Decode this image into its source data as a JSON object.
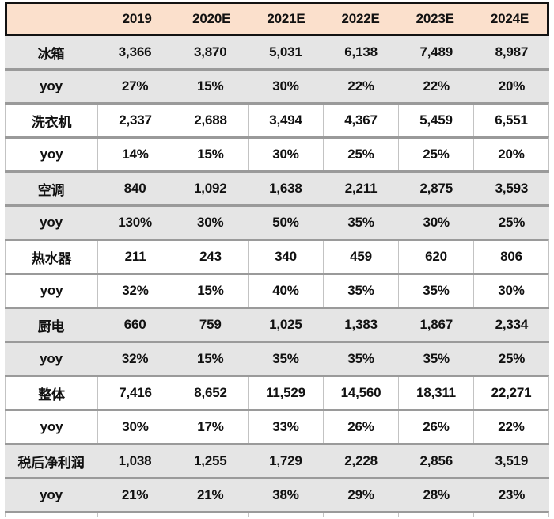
{
  "colors": {
    "header_bg": "#fbe0cc",
    "alt_row_bg": "#e5e5e5",
    "header_border": "#121212",
    "row_separator": "#9a9a9a",
    "column_grid_line": "#c3c3c3",
    "text": "#111111"
  },
  "chart_data": {
    "type": "table",
    "title": "",
    "columns": [
      "",
      "2019",
      "2020E",
      "2021E",
      "2022E",
      "2023E",
      "2024E"
    ],
    "rows": [
      {
        "label": "冰箱",
        "values": [
          "3,366",
          "3,870",
          "5,031",
          "6,138",
          "7,489",
          "8,987"
        ]
      },
      {
        "label": "yoy",
        "values": [
          "27%",
          "15%",
          "30%",
          "22%",
          "22%",
          "20%"
        ]
      },
      {
        "label": "洗衣机",
        "values": [
          "2,337",
          "2,688",
          "3,494",
          "4,367",
          "5,459",
          "6,551"
        ]
      },
      {
        "label": "yoy",
        "values": [
          "14%",
          "15%",
          "30%",
          "25%",
          "25%",
          "20%"
        ]
      },
      {
        "label": "空调",
        "values": [
          "840",
          "1,092",
          "1,638",
          "2,211",
          "2,875",
          "3,593"
        ]
      },
      {
        "label": "yoy",
        "values": [
          "130%",
          "30%",
          "50%",
          "35%",
          "30%",
          "25%"
        ]
      },
      {
        "label": "热水器",
        "values": [
          "211",
          "243",
          "340",
          "459",
          "620",
          "806"
        ]
      },
      {
        "label": "yoy",
        "values": [
          "32%",
          "15%",
          "40%",
          "35%",
          "35%",
          "30%"
        ]
      },
      {
        "label": "厨电",
        "values": [
          "660",
          "759",
          "1,025",
          "1,383",
          "1,867",
          "2,334"
        ]
      },
      {
        "label": "yoy",
        "values": [
          "32%",
          "15%",
          "35%",
          "35%",
          "35%",
          "25%"
        ]
      },
      {
        "label": "整体",
        "values": [
          "7,416",
          "8,652",
          "11,529",
          "14,560",
          "18,311",
          "22,271"
        ]
      },
      {
        "label": "yoy",
        "values": [
          "30%",
          "17%",
          "33%",
          "26%",
          "26%",
          "22%"
        ]
      },
      {
        "label": "税后净利润",
        "values": [
          "1,038",
          "1,255",
          "1,729",
          "2,228",
          "2,856",
          "3,519"
        ]
      },
      {
        "label": "yoy",
        "values": [
          "21%",
          "21%",
          "38%",
          "29%",
          "28%",
          "23%"
        ]
      }
    ],
    "layout": {
      "grid": "horizontal separators between every row, vertical column lines visible on white row pairs only",
      "row_shading": "pairs of rows alternate gray/white starting with gray",
      "legend_position": "none",
      "bottom_row_cropped": true
    }
  }
}
